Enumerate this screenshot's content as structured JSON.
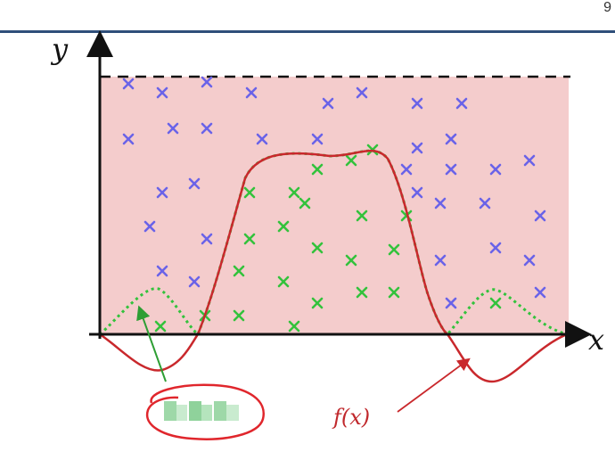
{
  "header": {
    "page_number": "9"
  },
  "axes": {
    "x_label": "x",
    "y_label": "y"
  },
  "function_label": "f(x)",
  "colors": {
    "region_fill": "#f4cccc",
    "outside_marker": "#6a63e8",
    "inside_marker": "#33c23c",
    "function_curve": "#c9282c",
    "dotted_curve": "#33c23c",
    "pointer_green": "#2e9e34",
    "pointer_red": "#c9282c",
    "scribble": "#e0262c",
    "header_rule": "#2f4f7a"
  },
  "blue_markers": [
    [
      144,
      94
    ],
    [
      182,
      104
    ],
    [
      232,
      92
    ],
    [
      282,
      104
    ],
    [
      368,
      116
    ],
    [
      406,
      104
    ],
    [
      468,
      116
    ],
    [
      518,
      116
    ],
    [
      144,
      156
    ],
    [
      194,
      144
    ],
    [
      232,
      144
    ],
    [
      294,
      156
    ],
    [
      356,
      156
    ],
    [
      468,
      166
    ],
    [
      506,
      156
    ],
    [
      182,
      216
    ],
    [
      218,
      206
    ],
    [
      456,
      190
    ],
    [
      506,
      190
    ],
    [
      556,
      190
    ],
    [
      594,
      180
    ],
    [
      468,
      216
    ],
    [
      168,
      254
    ],
    [
      232,
      268
    ],
    [
      494,
      228
    ],
    [
      544,
      228
    ],
    [
      606,
      242
    ],
    [
      182,
      304
    ],
    [
      218,
      316
    ],
    [
      494,
      292
    ],
    [
      556,
      278
    ],
    [
      594,
      292
    ],
    [
      606,
      328
    ],
    [
      506,
      340
    ]
  ],
  "green_markers": [
    [
      418,
      168
    ],
    [
      394,
      180
    ],
    [
      356,
      190
    ],
    [
      280,
      216
    ],
    [
      330,
      216
    ],
    [
      342,
      228
    ],
    [
      406,
      242
    ],
    [
      456,
      242
    ],
    [
      318,
      254
    ],
    [
      280,
      268
    ],
    [
      356,
      278
    ],
    [
      442,
      280
    ],
    [
      268,
      304
    ],
    [
      394,
      292
    ],
    [
      318,
      316
    ],
    [
      406,
      328
    ],
    [
      442,
      328
    ],
    [
      356,
      340
    ],
    [
      230,
      354
    ],
    [
      268,
      354
    ],
    [
      330,
      366
    ],
    [
      180,
      366
    ],
    [
      556,
      340
    ]
  ]
}
